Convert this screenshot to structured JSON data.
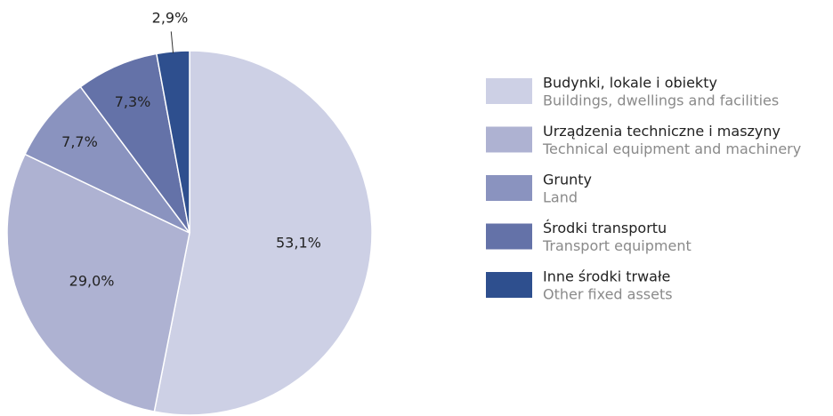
{
  "chart_data": {
    "type": "pie",
    "categories": [
      "Budynki, lokale i obiekty",
      "Urządzenia techniczne i maszyny",
      "Grunty",
      "Środki transportu",
      "Inne środki trwałe"
    ],
    "categories_en": [
      "Buildings, dwellings and facilities",
      "Technical equipment and machinery",
      "Land",
      "Transport equipment",
      "Other fixed assets"
    ],
    "values": [
      53.1,
      29.0,
      7.7,
      7.3,
      2.9
    ],
    "value_labels": [
      "53,1%",
      "29,0%",
      "7,7%",
      "7,3%",
      "2,9%"
    ],
    "colors": [
      "#cdd0e5",
      "#aeb2d2",
      "#8a93bf",
      "#6472a8",
      "#2e4f8e"
    ],
    "legend": "right"
  }
}
